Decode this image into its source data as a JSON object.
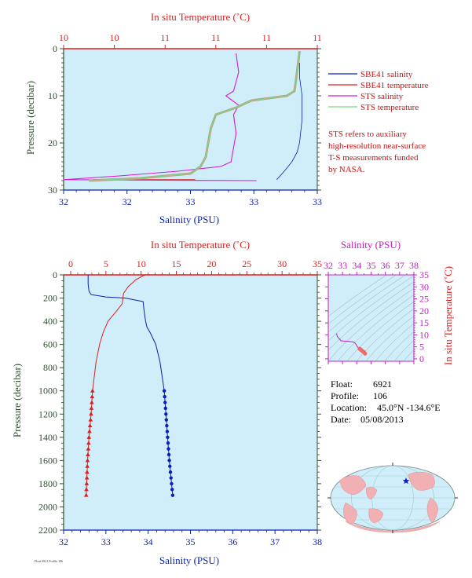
{
  "colors": {
    "salinity": "#0a1fb4",
    "temperature": "#dc1e1e",
    "sts_salinity": "#d21ed2",
    "sts_temperature": "#7fd87f",
    "sts_temp_overlay": "#b8a48c",
    "panel_bg": "#cfeefa",
    "ts_accent": "#c020c0",
    "axis_dark": "#2f4f2f",
    "legend_note": "#c81414"
  },
  "legend": {
    "items": [
      {
        "label": "SBE41 salinity",
        "color": "#0a1fb4"
      },
      {
        "label": "SBE41 temperature",
        "color": "#dc1e1e"
      },
      {
        "label": "STS salinity",
        "color": "#d21ed2"
      },
      {
        "label": "STS temperature",
        "color": "#7fd87f"
      }
    ],
    "note_lines": [
      "STS refers to auxiliary",
      "high-resolution near-surface",
      "T-S measurements funded",
      "by NASA."
    ]
  },
  "float_info": {
    "float_label": "Float:",
    "float_value": "6921",
    "profile_label": "Profile:",
    "profile_value": "106",
    "location_label": "Location:",
    "location_value": "45.0°N  -134.6°E",
    "date_label": "Date:",
    "date_value": "05/08/2013"
  },
  "footnote": "Float 6921 Profile 106",
  "chart_data": [
    {
      "type": "line",
      "title": "",
      "xlabel": "Salinity (PSU)",
      "x2label": "In situ Temperature (˚C)",
      "ylabel": "Pressure (decibar)",
      "xlim": [
        32,
        33
      ],
      "x2lim": [
        10,
        11
      ],
      "ylim": [
        30,
        0
      ],
      "x_ticks": [
        "32",
        "32",
        "33",
        "33",
        "33"
      ],
      "x2_ticks": [
        "10",
        "10",
        "11",
        "11",
        "11",
        "11"
      ],
      "y_ticks": [
        0,
        10,
        20,
        30
      ],
      "series": [
        {
          "name": "SBE41 salinity",
          "axis": "salinity",
          "x": [
            32.93,
            32.93,
            32.94,
            32.94,
            32.93,
            32.92,
            32.9,
            32.87,
            32.84
          ],
          "y": [
            3,
            6,
            10,
            15,
            20,
            22,
            24,
            26,
            27.8
          ]
        },
        {
          "name": "SBE41 temperature",
          "axis": "temperature",
          "x": [
            10.24
          ],
          "y": [
            27.8
          ]
        },
        {
          "name": "STS salinity",
          "axis": "salinity",
          "x": [
            32.68,
            32.69,
            32.67,
            32.64,
            32.69,
            32.67,
            32.68,
            32.67,
            32.66,
            32.62,
            32.45,
            32.22,
            32.0,
            32.76
          ],
          "y": [
            1,
            5,
            9,
            10,
            12,
            14,
            18,
            21,
            24,
            25,
            26,
            27,
            27.8,
            28
          ]
        },
        {
          "name": "STS temperature",
          "axis": "temperature",
          "x": [
            10.93,
            10.92,
            10.91,
            10.88,
            10.74,
            10.68,
            10.6,
            10.58,
            10.57,
            10.56,
            10.54,
            10.5,
            10.3,
            10.1
          ],
          "y": [
            0.5,
            5,
            9,
            10,
            11,
            12.5,
            14,
            17,
            20,
            23,
            25,
            26.5,
            27.5,
            28
          ]
        }
      ]
    },
    {
      "type": "line",
      "title": "",
      "xlabel": "Salinity (PSU)",
      "x2label": "In situ Temperature (˚C)",
      "ylabel": "Pressure (decibar)",
      "xlim": [
        32,
        38
      ],
      "x2lim": [
        -1,
        35
      ],
      "ylim": [
        2200,
        0
      ],
      "x_ticks": [
        32,
        33,
        34,
        35,
        36,
        37,
        38
      ],
      "x2_ticks": [
        0,
        5,
        10,
        15,
        20,
        25,
        30,
        35
      ],
      "y_ticks": [
        0,
        200,
        400,
        600,
        800,
        1000,
        1200,
        1400,
        1600,
        1800,
        2000,
        2200
      ],
      "series": [
        {
          "name": "SBE41 salinity",
          "axis": "salinity",
          "x": [
            32.58,
            32.58,
            32.6,
            32.65,
            33.0,
            33.45,
            33.88,
            33.9,
            33.94,
            33.97,
            34.05,
            34.18,
            34.28,
            34.34,
            34.38,
            34.42,
            34.46,
            34.5,
            34.54,
            34.58
          ],
          "y": [
            0,
            80,
            140,
            170,
            190,
            200,
            230,
            300,
            400,
            450,
            500,
            600,
            750,
            900,
            1000,
            1200,
            1400,
            1600,
            1750,
            1900
          ],
          "marker_from": 1000
        },
        {
          "name": "SBE41 temperature",
          "axis": "temperature",
          "x": [
            10.6,
            10.2,
            9.3,
            8.2,
            7.5,
            7.3,
            6.4,
            5.3,
            4.6,
            4.1,
            3.6,
            3.3,
            3.1,
            2.9,
            2.6,
            2.4,
            2.2
          ],
          "y": [
            0,
            10,
            40,
            100,
            160,
            250,
            320,
            400,
            500,
            600,
            750,
            900,
            1000,
            1200,
            1400,
            1600,
            1900
          ],
          "marker_from": 1000
        }
      ]
    },
    {
      "type": "line",
      "title": "",
      "xlabel": "Salinity (PSU)",
      "ylabel": "In situ Temperature (˚C)",
      "xlim": [
        32,
        38
      ],
      "ylim": [
        -1,
        35
      ],
      "x_ticks": [
        32,
        33,
        34,
        35,
        36,
        37,
        38
      ],
      "y_ticks": [
        0,
        5,
        10,
        15,
        20,
        25,
        30,
        35
      ],
      "series": [
        {
          "name": "T-S",
          "x": [
            32.58,
            32.6,
            32.62,
            32.9,
            33.4,
            33.8,
            33.95,
            34.05,
            34.2,
            34.3,
            34.4,
            34.5,
            34.58
          ],
          "y": [
            10.6,
            10.2,
            9.4,
            7.5,
            7.3,
            7.0,
            6.0,
            5.0,
            4.2,
            3.7,
            3.2,
            2.8,
            2.2
          ]
        }
      ]
    }
  ]
}
